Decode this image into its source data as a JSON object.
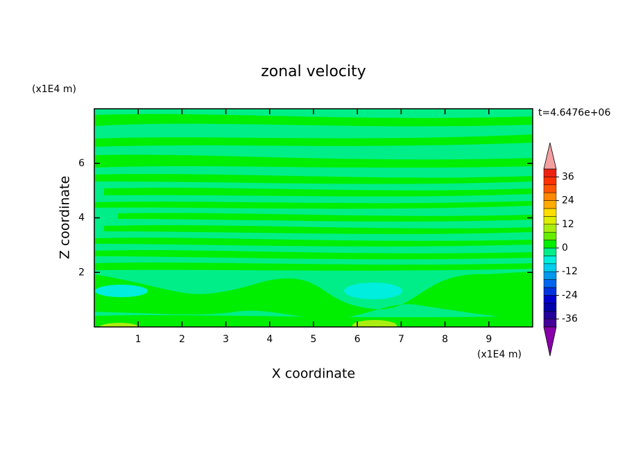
{
  "chart_data": {
    "type": "contour",
    "title": "zonal velocity",
    "time_label": "t=4.6476e+06",
    "x_label": "X coordinate",
    "y_label": "Z coordinate",
    "x_unit": "(x1E4 m)",
    "y_unit": "(x1E4 m)",
    "xlim": [
      0,
      10
    ],
    "ylim": [
      0,
      8
    ],
    "xticks": [
      1,
      2,
      3,
      4,
      5,
      6,
      7,
      8,
      9
    ],
    "yticks": [
      2,
      4,
      6
    ],
    "colorbar": {
      "levels": [
        -40,
        -36,
        -32,
        -28,
        -24,
        -20,
        -16,
        -12,
        -8,
        -4,
        0,
        4,
        8,
        12,
        16,
        20,
        24,
        28,
        32,
        36,
        40
      ],
      "colors": [
        "#440099",
        "#220099",
        "#0000aa",
        "#0000cc",
        "#0033dd",
        "#0066ee",
        "#0099ee",
        "#00ccee",
        "#00eedd",
        "#00ee88",
        "#00ee00",
        "#66ee00",
        "#aaee11",
        "#ddee00",
        "#ffdd00",
        "#ffaa00",
        "#ff8800",
        "#ff5500",
        "#ff3300",
        "#ee2211"
      ],
      "extend_colors": [
        "#8800aa",
        "#f4a0a0"
      ],
      "ticks": [
        -36,
        -24,
        -12,
        0,
        12,
        24,
        36
      ]
    }
  }
}
